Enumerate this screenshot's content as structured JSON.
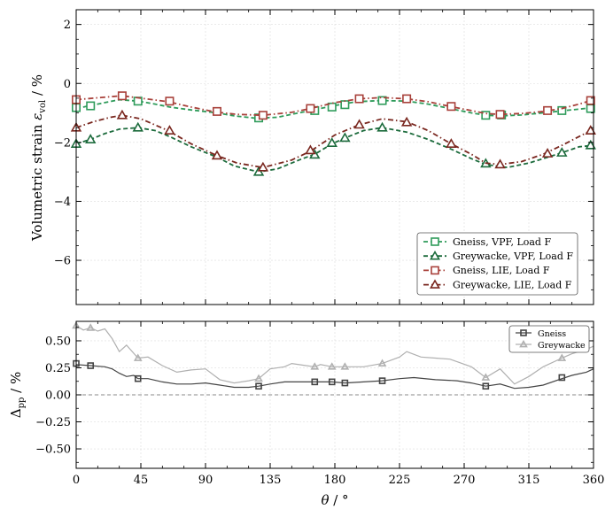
{
  "chart_data": [
    {
      "type": "line",
      "panel": "top",
      "ylabel_main": "Volumetric strain ",
      "ylabel_sym": "ε",
      "ylabel_sub": "vol",
      "ylabel_unit": " / %",
      "xlim": [
        0,
        360
      ],
      "ylim": [
        -7.5,
        2.5
      ],
      "yticks": [
        2,
        0,
        -2,
        -4,
        -6
      ],
      "ytick_labels": [
        "2",
        "0",
        "−2",
        "−4",
        "−6"
      ],
      "grid": true,
      "legend_position": "lower-right",
      "series": [
        {
          "name": "Gneiss, VPF, Load F",
          "color": "#2e9b5a",
          "dash": "dashed",
          "marker": "square",
          "x": [
            0,
            10,
            20,
            30,
            43,
            55,
            65,
            80,
            98,
            110,
            125,
            140,
            155,
            165,
            180,
            195,
            212,
            230,
            245,
            260,
            275,
            285,
            295,
            310,
            325,
            340,
            360
          ],
          "y": [
            -0.85,
            -0.75,
            -0.65,
            -0.55,
            -0.6,
            -0.7,
            -0.8,
            -0.9,
            -1.0,
            -1.1,
            -1.18,
            -1.15,
            -1.0,
            -0.9,
            -0.75,
            -0.62,
            -0.58,
            -0.6,
            -0.7,
            -0.85,
            -1.0,
            -1.08,
            -1.1,
            -1.07,
            -1.0,
            -0.92,
            -0.82
          ],
          "marker_x": [
            0,
            10,
            43,
            127,
            166,
            178,
            187,
            213,
            285,
            296,
            338,
            358
          ],
          "marker_y": [
            -0.82,
            -0.76,
            -0.6,
            -1.17,
            -0.92,
            -0.8,
            -0.72,
            -0.58,
            -1.08,
            -1.07,
            -0.92,
            -0.85
          ]
        },
        {
          "name": "Greywacke, VPF, Load F",
          "color": "#1c6b3c",
          "dash": "dashed",
          "marker": "triangle",
          "x": [
            0,
            10,
            20,
            30,
            43,
            55,
            65,
            80,
            98,
            110,
            127,
            140,
            155,
            166,
            178,
            187,
            200,
            213,
            230,
            245,
            262,
            275,
            285,
            300,
            315,
            325,
            338,
            350,
            360
          ],
          "y": [
            -2.05,
            -1.9,
            -1.7,
            -1.55,
            -1.5,
            -1.6,
            -1.8,
            -2.15,
            -2.5,
            -2.8,
            -3.0,
            -2.9,
            -2.6,
            -2.4,
            -2.05,
            -1.85,
            -1.6,
            -1.5,
            -1.65,
            -1.9,
            -2.25,
            -2.55,
            -2.75,
            -2.85,
            -2.7,
            -2.55,
            -2.35,
            -2.15,
            -2.1
          ],
          "marker_x": [
            0,
            10,
            43,
            127,
            166,
            178,
            187,
            213,
            285,
            338,
            358
          ],
          "marker_y": [
            -2.05,
            -1.9,
            -1.5,
            -3.0,
            -2.42,
            -2.02,
            -1.85,
            -1.5,
            -2.72,
            -2.35,
            -2.1
          ]
        },
        {
          "name": "Gneiss, LIE, Load F",
          "color": "#a8403a",
          "dash": "dashdot",
          "marker": "square",
          "x": [
            0,
            12,
            24,
            32,
            45,
            64,
            80,
            97,
            112,
            130,
            150,
            163,
            180,
            197,
            213,
            230,
            245,
            260,
            275,
            285,
            295,
            310,
            325,
            338,
            350,
            360
          ],
          "y": [
            -0.55,
            -0.5,
            -0.45,
            -0.42,
            -0.5,
            -0.62,
            -0.8,
            -0.97,
            -1.05,
            -1.08,
            -0.98,
            -0.85,
            -0.65,
            -0.52,
            -0.48,
            -0.52,
            -0.62,
            -0.78,
            -0.92,
            -1.02,
            -1.05,
            -1.02,
            -0.95,
            -0.85,
            -0.7,
            -0.55
          ],
          "marker_x": [
            0,
            32,
            65,
            98,
            130,
            163,
            197,
            230,
            261,
            295,
            328,
            358
          ],
          "marker_y": [
            -0.55,
            -0.42,
            -0.6,
            -0.95,
            -1.08,
            -0.85,
            -0.52,
            -0.52,
            -0.78,
            -1.05,
            -0.92,
            -0.58
          ]
        },
        {
          "name": "Greywacke, LIE, Load F",
          "color": "#7a2820",
          "dash": "dashdot",
          "marker": "triangle",
          "x": [
            0,
            12,
            24,
            32,
            45,
            64,
            80,
            98,
            112,
            130,
            150,
            163,
            180,
            197,
            213,
            230,
            245,
            261,
            275,
            285,
            295,
            310,
            325,
            338,
            350,
            360
          ],
          "y": [
            -1.5,
            -1.3,
            -1.15,
            -1.08,
            -1.2,
            -1.6,
            -2.05,
            -2.45,
            -2.7,
            -2.85,
            -2.6,
            -2.3,
            -1.75,
            -1.4,
            -1.2,
            -1.3,
            -1.6,
            -2.05,
            -2.4,
            -2.7,
            -2.75,
            -2.65,
            -2.4,
            -2.1,
            -1.8,
            -1.55
          ],
          "marker_x": [
            0,
            32,
            65,
            98,
            130,
            163,
            197,
            230,
            261,
            295,
            328,
            358
          ],
          "marker_y": [
            -1.5,
            -1.08,
            -1.6,
            -2.45,
            -2.85,
            -2.27,
            -1.4,
            -1.32,
            -2.05,
            -2.75,
            -2.38,
            -1.6
          ]
        }
      ]
    },
    {
      "type": "line",
      "panel": "bottom",
      "ylabel_main": "Δ",
      "ylabel_sub": "pp",
      "ylabel_unit": " / %",
      "xlabel_sym": "θ",
      "xlabel_unit": " / °",
      "xlim": [
        0,
        360
      ],
      "ylim": [
        -0.68,
        0.68
      ],
      "xticks": [
        0,
        45,
        90,
        135,
        180,
        225,
        270,
        315,
        360
      ],
      "xtick_labels": [
        "0",
        "45",
        "90",
        "135",
        "180",
        "225",
        "270",
        "315",
        "360"
      ],
      "yticks": [
        0.5,
        0.25,
        0.0,
        -0.25,
        -0.5
      ],
      "ytick_labels": [
        "0.50",
        "0.25",
        "0.00",
        "−0.25",
        "−0.50"
      ],
      "reference_line": 0,
      "grid": true,
      "legend_position": "top-right",
      "series": [
        {
          "name": "Gneiss",
          "color": "#444444",
          "marker": "square",
          "x": [
            0,
            10,
            20,
            25,
            30,
            35,
            40,
            43,
            50,
            60,
            70,
            80,
            90,
            100,
            110,
            120,
            127,
            135,
            145,
            155,
            166,
            178,
            187,
            200,
            213,
            225,
            235,
            250,
            265,
            275,
            285,
            295,
            305,
            315,
            325,
            338,
            345,
            355,
            360
          ],
          "y": [
            0.28,
            0.27,
            0.26,
            0.24,
            0.2,
            0.17,
            0.18,
            0.15,
            0.15,
            0.12,
            0.1,
            0.1,
            0.11,
            0.09,
            0.07,
            0.07,
            0.08,
            0.1,
            0.12,
            0.12,
            0.12,
            0.12,
            0.11,
            0.12,
            0.13,
            0.15,
            0.16,
            0.14,
            0.13,
            0.11,
            0.08,
            0.1,
            0.06,
            0.07,
            0.09,
            0.15,
            0.18,
            0.21,
            0.24
          ],
          "marker_x": [
            0,
            10,
            43,
            127,
            166,
            178,
            187,
            213,
            285,
            338
          ],
          "marker_y": [
            0.29,
            0.27,
            0.15,
            0.08,
            0.12,
            0.12,
            0.11,
            0.13,
            0.08,
            0.16
          ]
        },
        {
          "name": "Greywacke",
          "color": "#b0b0b0",
          "marker": "triangle",
          "x": [
            0,
            5,
            10,
            15,
            20,
            25,
            30,
            35,
            43,
            50,
            60,
            70,
            80,
            90,
            100,
            110,
            120,
            127,
            135,
            145,
            150,
            160,
            166,
            170,
            178,
            187,
            200,
            213,
            225,
            230,
            240,
            250,
            260,
            275,
            285,
            295,
            305,
            315,
            325,
            338,
            345,
            355,
            360
          ],
          "y": [
            0.64,
            0.6,
            0.62,
            0.59,
            0.61,
            0.52,
            0.4,
            0.46,
            0.34,
            0.35,
            0.27,
            0.21,
            0.23,
            0.24,
            0.14,
            0.11,
            0.13,
            0.15,
            0.24,
            0.26,
            0.29,
            0.27,
            0.26,
            0.28,
            0.26,
            0.26,
            0.26,
            0.29,
            0.35,
            0.4,
            0.35,
            0.34,
            0.33,
            0.26,
            0.16,
            0.24,
            0.1,
            0.17,
            0.26,
            0.34,
            0.38,
            0.42,
            0.45
          ],
          "marker_x": [
            0,
            10,
            43,
            127,
            166,
            178,
            187,
            213,
            285,
            338
          ],
          "marker_y": [
            0.64,
            0.62,
            0.34,
            0.15,
            0.26,
            0.26,
            0.26,
            0.29,
            0.16,
            0.34
          ]
        }
      ]
    }
  ]
}
